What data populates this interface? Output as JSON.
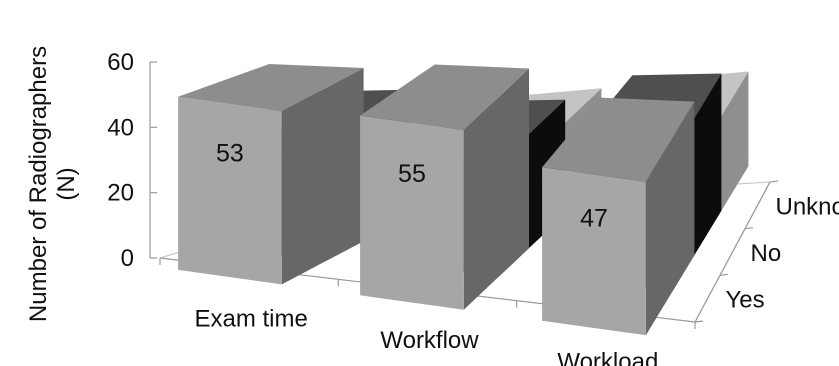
{
  "chart_data": {
    "type": "bar",
    "ylabel_line1": "Number of Radiographers",
    "ylabel_line2": "(N)",
    "yticks": [
      "0",
      "20",
      "40",
      "60"
    ],
    "ylim": [
      0,
      60
    ],
    "categories": [
      "Exam time",
      "Workflow",
      "Workload"
    ],
    "series": [
      {
        "name": "Yes",
        "values": [
          53,
          55,
          47
        ],
        "color": "#a6a6a6"
      },
      {
        "name": "No",
        "values": [
          39,
          35,
          42
        ],
        "color": "#141414"
      },
      {
        "name": "Unknow",
        "values": [
          26,
          28,
          29
        ],
        "color": "#e6e6e6"
      }
    ],
    "grid": false,
    "style": "3d-column"
  }
}
